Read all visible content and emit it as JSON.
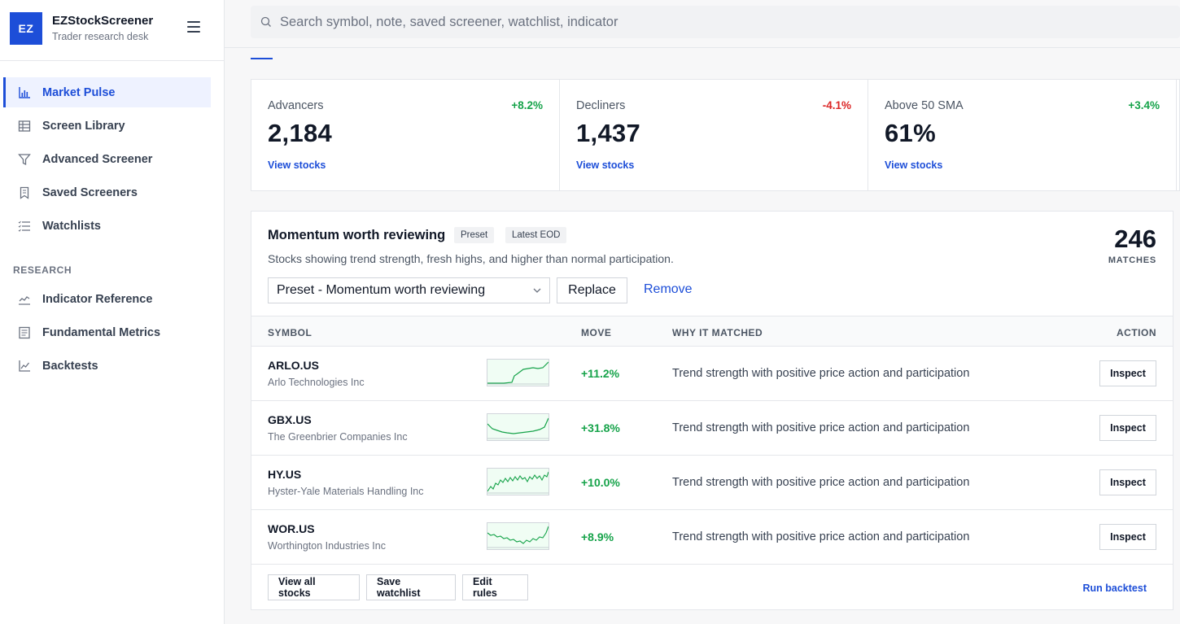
{
  "brand": {
    "logo": "EZ",
    "name": "EZStockScreener",
    "subtitle": "Trader research desk"
  },
  "search": {
    "placeholder": "Search symbol, note, saved screener, watchlist, indicator"
  },
  "sidebar": {
    "items": [
      {
        "label": "Market Pulse",
        "icon": "bar-chart-icon",
        "active": true
      },
      {
        "label": "Screen Library",
        "icon": "table-icon"
      },
      {
        "label": "Advanced Screener",
        "icon": "filter-icon"
      },
      {
        "label": "Saved Screeners",
        "icon": "bookmark-icon"
      },
      {
        "label": "Watchlists",
        "icon": "list-icon"
      }
    ],
    "section_label": "RESEARCH",
    "research_items": [
      {
        "label": "Indicator Reference",
        "icon": "indicator-chart-icon"
      },
      {
        "label": "Fundamental Metrics",
        "icon": "document-icon"
      },
      {
        "label": "Backtests",
        "icon": "line-chart-icon"
      }
    ]
  },
  "stats": [
    {
      "label": "Advancers",
      "change": "+8.2%",
      "value": "2,184",
      "link": "View stocks",
      "color": "#16a34a"
    },
    {
      "label": "Decliners",
      "change": "-4.1%",
      "value": "1,437",
      "link": "View stocks",
      "color": "#dc2626"
    },
    {
      "label": "Above 50 SMA",
      "change": "+3.4%",
      "value": "61%",
      "link": "View stocks",
      "color": "#16a34a"
    }
  ],
  "screener": {
    "title": "Momentum worth reviewing",
    "tags": [
      "Preset",
      "Latest EOD"
    ],
    "description": "Stocks showing trend strength, fresh highs, and higher than normal participation.",
    "matches_count": "246",
    "matches_label": "MATCHES",
    "select_value": "Preset - Momentum worth reviewing",
    "replace_label": "Replace",
    "remove_label": "Remove",
    "columns": {
      "symbol": "SYMBOL",
      "move": "MOVE",
      "why": "WHY IT MATCHED",
      "action": "ACTION"
    },
    "rows": [
      {
        "symbol": "ARLO.US",
        "company": "Arlo Technologies Inc",
        "move": "+11.2%",
        "why": "Trend strength with positive price action and participation",
        "action": "Inspect"
      },
      {
        "symbol": "GBX.US",
        "company": "The Greenbrier Companies Inc",
        "move": "+31.8%",
        "why": "Trend strength with positive price action and participation",
        "action": "Inspect"
      },
      {
        "symbol": "HY.US",
        "company": "Hyster-Yale Materials Handling Inc",
        "move": "+10.0%",
        "why": "Trend strength with positive price action and participation",
        "action": "Inspect"
      },
      {
        "symbol": "WOR.US",
        "company": "Worthington Industries Inc",
        "move": "+8.9%",
        "why": "Trend strength with positive price action and participation",
        "action": "Inspect"
      }
    ],
    "footer": {
      "view_all": "View all stocks",
      "save_watchlist": "Save watchlist",
      "edit_rules": "Edit rules",
      "run_backtest": "Run backtest"
    }
  },
  "colors": {
    "accent": "#1d4ed8",
    "positive": "#16a34a",
    "negative": "#dc2626"
  }
}
